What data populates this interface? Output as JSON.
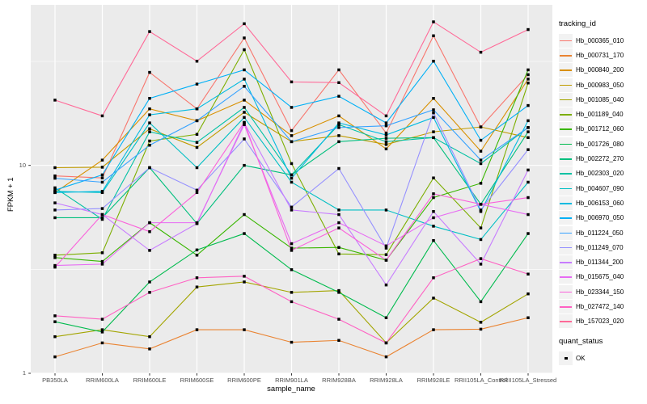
{
  "chart_data": {
    "type": "line",
    "title": "",
    "xlabel": "sample_name",
    "ylabel": "FPKM + 1",
    "y_scale": "log10",
    "ylim": [
      1,
      59
    ],
    "y_major_ticks": [
      "1",
      "10"
    ],
    "y_major_values": [
      1,
      10
    ],
    "y_minor_values": [
      3.162,
      31.62
    ],
    "grid": "on",
    "legend_position": "right",
    "panel_bg": "#EBEBEB",
    "grid_color": "#FFFFFF",
    "key_bg": "#F2F2F2",
    "marker": "black-square",
    "categories": [
      "PB350LA",
      "RRIM600LA",
      "RRIM600LE",
      "RRIM600SE",
      "RRIM600PE",
      "RRIM901LA",
      "RRIM928BA",
      "RRIM928LA",
      "RRIM928LE",
      "RRII105LA_Control",
      "RRII105LA_Stressed"
    ],
    "series": [
      {
        "name": "Hb_000365_010",
        "color": "#F8766D",
        "values": [
          8.9,
          8.7,
          28,
          18.7,
          41,
          14.7,
          28.8,
          14.3,
          42,
          15.3,
          27.3
        ]
      },
      {
        "name": "Hb_000731_170",
        "color": "#EA8331",
        "values": [
          1.2,
          1.4,
          1.31,
          1.62,
          1.62,
          1.41,
          1.44,
          1.2,
          1.62,
          1.63,
          1.85
        ]
      },
      {
        "name": "Hb_000840_200",
        "color": "#D89000",
        "values": [
          7.4,
          10.6,
          18.7,
          16.4,
          20.6,
          13.9,
          17.3,
          12.0,
          21,
          11.7,
          26
        ]
      },
      {
        "name": "Hb_000983_050",
        "color": "#C09B00",
        "values": [
          9.75,
          9.8,
          15.0,
          12.2,
          18.0,
          13.0,
          13.9,
          12.6,
          14.5,
          15.3,
          13.6
        ]
      },
      {
        "name": "Hb_001085_040",
        "color": "#A3A500",
        "values": [
          1.5,
          1.62,
          1.5,
          2.6,
          2.75,
          2.45,
          2.5,
          1.4,
          2.3,
          1.76,
          2.41
        ]
      },
      {
        "name": "Hb_001189_040",
        "color": "#7CAE00",
        "values": [
          3.7,
          3.8,
          13.1,
          14.1,
          36,
          10.2,
          3.75,
          3.72,
          8.7,
          5.0,
          24.9
        ]
      },
      {
        "name": "Hb_001712_060",
        "color": "#39B600",
        "values": [
          3.6,
          3.45,
          5.3,
          3.7,
          5.8,
          4.0,
          4.03,
          3.5,
          7.0,
          8.2,
          28.8
        ]
      },
      {
        "name": "Hb_001726_080",
        "color": "#00BB4E",
        "values": [
          1.77,
          1.58,
          2.75,
          3.92,
          4.7,
          3.15,
          2.45,
          1.85,
          4.35,
          2.21,
          4.7
        ]
      },
      {
        "name": "Hb_002272_270",
        "color": "#00BF7D",
        "values": [
          5.6,
          5.6,
          9.75,
          5.25,
          10.0,
          9.0,
          13.0,
          13.5,
          13.6,
          6.5,
          14.5
        ]
      },
      {
        "name": "Hb_002303_020",
        "color": "#00C1A3",
        "values": [
          7.8,
          5.5,
          14.5,
          12.9,
          19.0,
          9.0,
          15.7,
          13.0,
          13.6,
          10.2,
          15.2
        ]
      },
      {
        "name": "Hb_004607_090",
        "color": "#00BFC4",
        "values": [
          7.5,
          7.4,
          16.0,
          9.75,
          17.0,
          8.3,
          6.1,
          6.1,
          5.1,
          4.4,
          8.3
        ]
      },
      {
        "name": "Hb_006153_060",
        "color": "#00BAE0",
        "values": [
          7.4,
          7.5,
          17.5,
          18.7,
          26,
          8.67,
          16.0,
          14.0,
          17.0,
          6.0,
          16.4
        ]
      },
      {
        "name": "Hb_006970_050",
        "color": "#00B0F6",
        "values": [
          7.6,
          9.0,
          21.0,
          24.6,
          28.8,
          19.0,
          21.5,
          16.0,
          31.7,
          13.2,
          19.4
        ]
      },
      {
        "name": "Hb_011224_050",
        "color": "#35A2FF",
        "values": [
          8.67,
          8.3,
          12.5,
          16.4,
          24.0,
          13.0,
          15.2,
          15.5,
          18.5,
          10.6,
          15.2
        ]
      },
      {
        "name": "Hb_011249_070",
        "color": "#9590FF",
        "values": [
          6.1,
          6.2,
          9.75,
          7.6,
          13.4,
          6.3,
          9.66,
          4.0,
          17.9,
          6.1,
          11.9
        ]
      },
      {
        "name": "Hb_011344_200",
        "color": "#C77CFF",
        "values": [
          6.6,
          5.8,
          3.9,
          5.25,
          16.0,
          6.1,
          5.8,
          2.66,
          6.0,
          3.35,
          9.5
        ]
      },
      {
        "name": "Hb_015675_040",
        "color": "#E76BF3",
        "values": [
          3.3,
          3.35,
          5.3,
          5.3,
          15.7,
          4.2,
          5.3,
          4.1,
          5.6,
          6.5,
          5.8
        ]
      },
      {
        "name": "Hb_023344_150",
        "color": "#FA62DB",
        "values": [
          3.24,
          5.8,
          4.8,
          7.4,
          16.1,
          3.9,
          5.0,
          3.5,
          7.3,
          6.5,
          7.0
        ]
      },
      {
        "name": "Hb_027472_140",
        "color": "#FF61C3",
        "values": [
          1.89,
          1.82,
          2.45,
          2.88,
          2.93,
          2.21,
          1.82,
          1.4,
          2.88,
          3.56,
          3.0
        ]
      },
      {
        "name": "Hb_157023_020",
        "color": "#FF6A98",
        "values": [
          20.6,
          17.3,
          44,
          31.7,
          48,
          25.2,
          25,
          17.3,
          49,
          35,
          45
        ]
      }
    ]
  },
  "axes": {
    "x_title": "sample_name",
    "y_title": "FPKM + 1",
    "y_tick_1": "1",
    "y_tick_10": "10"
  },
  "legend": {
    "tracking_title": "tracking_id",
    "quant_title": "quant_status",
    "quant_ok": "OK"
  }
}
